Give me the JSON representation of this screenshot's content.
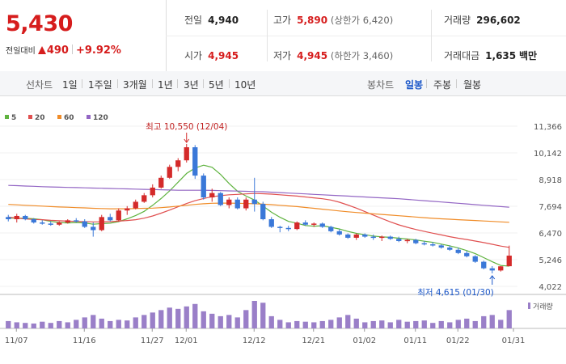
{
  "header": {
    "current_price": "5,430",
    "change_label": "전일대비",
    "change_value": "490",
    "change_pct": "+9.92%",
    "prev_close_label": "전일",
    "prev_close": "4,940",
    "high_label": "고가",
    "high": "5,890",
    "upper_limit": "(상한가 6,420)",
    "volume_label": "거래량",
    "volume": "296,602",
    "open_label": "시가",
    "open": "4,945",
    "low_label": "저가",
    "low": "4,945",
    "lower_limit": "(하한가 3,460)",
    "value_label": "거래대금",
    "trade_value": "1,635",
    "trade_value_unit": "백만"
  },
  "toolbar": {
    "line_label": "선차트",
    "periods": [
      "1일",
      "1주일",
      "3개월",
      "1년",
      "3년",
      "5년",
      "10년"
    ],
    "candle_label": "봉차트",
    "candles": [
      "일봉",
      "주봉",
      "월봉"
    ],
    "active_candle": "일봉"
  },
  "colors": {
    "up": "#d42a2a",
    "down": "#3a78d8",
    "ma5": "#5fb33f",
    "ma20": "#e05050",
    "ma60": "#f08c28",
    "ma120": "#9366c4",
    "volume": "#9a7fc8"
  },
  "chart_data": {
    "type": "candlestick",
    "legend": [
      "5",
      "20",
      "60",
      "120"
    ],
    "y_ticks": [
      "11,366",
      "10,142",
      "8,918",
      "7,694",
      "6,470",
      "5,246",
      "4,022"
    ],
    "y_range": [
      4022,
      11366
    ],
    "x_ticks": [
      "11/07",
      "11/16",
      "11/27",
      "12/01",
      "12/12",
      "12/21",
      "01/02",
      "01/11",
      "01/22",
      "01/31"
    ],
    "annotations": {
      "high": "최고 10,550 (12/04)",
      "low": "최저 4,615 (01/30)"
    },
    "volume_legend": "거래량",
    "ohlc": [
      [
        7200,
        7300,
        7000,
        7100
      ],
      [
        7100,
        7350,
        6950,
        7250
      ],
      [
        7250,
        7300,
        7050,
        7100
      ],
      [
        7100,
        7150,
        6900,
        6950
      ],
      [
        6950,
        7050,
        6850,
        6900
      ],
      [
        6900,
        7000,
        6800,
        6850
      ],
      [
        6850,
        7000,
        6800,
        6950
      ],
      [
        6950,
        7100,
        6900,
        7050
      ],
      [
        7050,
        7150,
        6950,
        7000
      ],
      [
        7000,
        7100,
        6700,
        6750
      ],
      [
        6750,
        6950,
        6300,
        6600
      ],
      [
        6600,
        7300,
        6550,
        7200
      ],
      [
        7200,
        7350,
        7000,
        7050
      ],
      [
        7050,
        7600,
        7000,
        7500
      ],
      [
        7500,
        7700,
        7300,
        7600
      ],
      [
        7600,
        8000,
        7550,
        7900
      ],
      [
        7900,
        8300,
        7850,
        8200
      ],
      [
        8200,
        8700,
        8100,
        8550
      ],
      [
        8550,
        9100,
        8500,
        9000
      ],
      [
        9000,
        9600,
        8950,
        9500
      ],
      [
        9500,
        9900,
        9300,
        9800
      ],
      [
        9800,
        10550,
        9700,
        10400
      ],
      [
        10400,
        10500,
        8950,
        9100
      ],
      [
        9100,
        9200,
        8000,
        8100
      ],
      [
        8100,
        8500,
        7900,
        8300
      ],
      [
        8300,
        8350,
        7700,
        7750
      ],
      [
        7750,
        8100,
        7600,
        8000
      ],
      [
        8000,
        8100,
        7550,
        7600
      ],
      [
        7600,
        8100,
        7500,
        8000
      ],
      [
        8000,
        9000,
        7450,
        7800
      ],
      [
        7800,
        7900,
        7050,
        7100
      ],
      [
        7100,
        7200,
        6700,
        6750
      ],
      [
        6750,
        6800,
        6500,
        6700
      ],
      [
        6700,
        6800,
        6550,
        6650
      ],
      [
        6650,
        7000,
        6600,
        6950
      ],
      [
        6950,
        7050,
        6800,
        6850
      ],
      [
        6850,
        6950,
        6750,
        6900
      ],
      [
        6900,
        6950,
        6700,
        6750
      ],
      [
        6750,
        6800,
        6500,
        6550
      ],
      [
        6550,
        6650,
        6350,
        6400
      ],
      [
        6400,
        6450,
        6200,
        6250
      ],
      [
        6250,
        6450,
        6150,
        6400
      ],
      [
        6400,
        6450,
        6250,
        6300
      ],
      [
        6300,
        6400,
        6150,
        6250
      ],
      [
        6250,
        6350,
        6100,
        6300
      ],
      [
        6300,
        6350,
        6150,
        6200
      ],
      [
        6200,
        6300,
        6050,
        6100
      ],
      [
        6100,
        6200,
        6000,
        6150
      ],
      [
        6150,
        6200,
        5950,
        6000
      ],
      [
        6000,
        6100,
        5900,
        5950
      ],
      [
        5950,
        6050,
        5850,
        5900
      ],
      [
        5900,
        5950,
        5750,
        5800
      ],
      [
        5800,
        5900,
        5650,
        5700
      ],
      [
        5700,
        5800,
        5500,
        5550
      ],
      [
        5550,
        5650,
        5350,
        5400
      ],
      [
        5400,
        5450,
        5100,
        5150
      ],
      [
        5150,
        5200,
        4800,
        4850
      ],
      [
        4850,
        4950,
        4615,
        4750
      ],
      [
        4750,
        4950,
        4700,
        4940
      ],
      [
        4945,
        5890,
        4945,
        5430
      ]
    ],
    "volume": [
      12,
      10,
      9,
      8,
      11,
      9,
      12,
      10,
      14,
      18,
      22,
      16,
      12,
      14,
      13,
      18,
      22,
      26,
      30,
      34,
      32,
      36,
      40,
      28,
      24,
      20,
      22,
      18,
      30,
      45,
      42,
      20,
      14,
      10,
      12,
      11,
      10,
      12,
      14,
      18,
      22,
      16,
      10,
      12,
      13,
      10,
      14,
      11,
      12,
      13,
      9,
      12,
      10,
      14,
      16,
      12,
      20,
      22,
      14,
      30
    ],
    "ma": {
      "5": [
        7150,
        7150,
        7140,
        7120,
        7080,
        7000,
        6950,
        6930,
        6950,
        6930,
        6870,
        6900,
        6920,
        6990,
        7120,
        7270,
        7460,
        7740,
        8050,
        8400,
        8800,
        9200,
        9450,
        9580,
        9480,
        9150,
        8740,
        8380,
        8160,
        7980,
        7700,
        7420,
        7190,
        7000,
        6920,
        6810,
        6780,
        6800,
        6730,
        6650,
        6540,
        6450,
        6390,
        6330,
        6290,
        6270,
        6230,
        6190,
        6150,
        6090,
        6040,
        5960,
        5880,
        5780,
        5660,
        5520,
        5340,
        5150,
        4980,
        4950
      ],
      "20": [
        7200,
        7150,
        7110,
        7090,
        7080,
        7050,
        7030,
        7010,
        7000,
        6990,
        6980,
        6980,
        6990,
        7010,
        7040,
        7080,
        7150,
        7250,
        7380,
        7520,
        7670,
        7820,
        7950,
        8050,
        8130,
        8180,
        8220,
        8240,
        8260,
        8280,
        8270,
        8250,
        8220,
        8190,
        8160,
        8120,
        8080,
        8040,
        7980,
        7880,
        7750,
        7610,
        7450,
        7290,
        7130,
        6980,
        6840,
        6730,
        6630,
        6540,
        6460,
        6380,
        6300,
        6230,
        6170,
        6100,
        6030,
        5950,
        5870,
        5810
      ],
      "60": [
        7780,
        7760,
        7740,
        7720,
        7700,
        7680,
        7660,
        7650,
        7630,
        7620,
        7600,
        7590,
        7580,
        7580,
        7580,
        7590,
        7600,
        7610,
        7630,
        7660,
        7700,
        7740,
        7780,
        7810,
        7830,
        7840,
        7840,
        7830,
        7820,
        7810,
        7790,
        7770,
        7740,
        7710,
        7680,
        7640,
        7600,
        7560,
        7520,
        7480,
        7440,
        7410,
        7380,
        7350,
        7320,
        7290,
        7260,
        7230,
        7200,
        7170,
        7140,
        7120,
        7100,
        7080,
        7060,
        7040,
        7020,
        7000,
        6980,
        6960
      ],
      "120": [
        8650,
        8640,
        8620,
        8610,
        8590,
        8580,
        8570,
        8560,
        8550,
        8540,
        8530,
        8520,
        8510,
        8500,
        8490,
        8480,
        8470,
        8460,
        8450,
        8440,
        8430,
        8430,
        8430,
        8430,
        8420,
        8410,
        8400,
        8390,
        8380,
        8370,
        8360,
        8340,
        8320,
        8300,
        8280,
        8260,
        8240,
        8220,
        8200,
        8180,
        8160,
        8140,
        8120,
        8100,
        8080,
        8060,
        8040,
        8010,
        7980,
        7950,
        7920,
        7890,
        7860,
        7830,
        7800,
        7770,
        7740,
        7710,
        7680,
        7650
      ]
    }
  }
}
